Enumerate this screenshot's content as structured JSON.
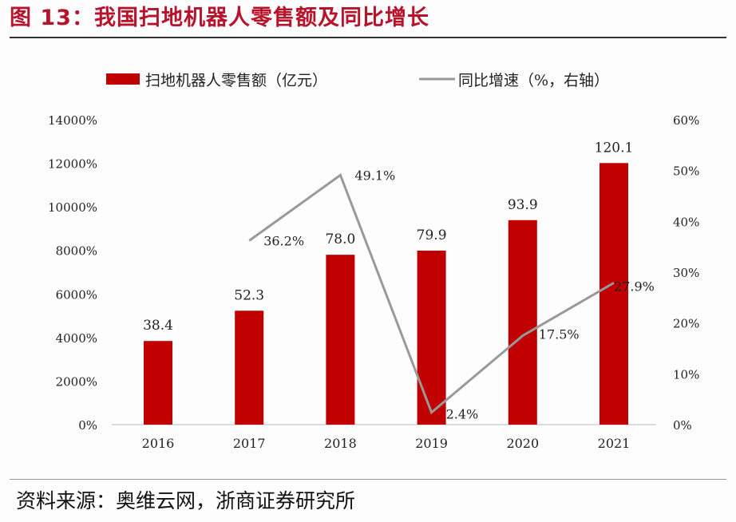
{
  "title": "图 13：我国扫地机器人零售额及同比增长",
  "source": "资料来源：奥维云网，浙商证券研究所",
  "chart_data": {
    "type": "bar+line",
    "categories": [
      "2016",
      "2017",
      "2018",
      "2019",
      "2020",
      "2021"
    ],
    "series": [
      {
        "name": "扫地机器人零售额（亿元）",
        "type": "bar",
        "axis": "left",
        "color": "#c00000",
        "values": [
          38.4,
          52.3,
          78.0,
          79.9,
          93.9,
          120.1
        ],
        "labels": [
          "38.4",
          "52.3",
          "78.0",
          "79.9",
          "93.9",
          "120.1"
        ]
      },
      {
        "name": "同比增速（%，右轴）",
        "type": "line",
        "axis": "right",
        "color": "#999999",
        "values": [
          null,
          36.2,
          49.1,
          2.4,
          17.5,
          27.9
        ],
        "labels": [
          "",
          "36.2%",
          "49.1%",
          "2.4%",
          "17.5%",
          "27.9%"
        ]
      }
    ],
    "left_axis": {
      "ylim": [
        0,
        140
      ],
      "ticks": [
        "0%",
        "2000%",
        "4000%",
        "6000%",
        "8000%",
        "10000%",
        "12000%",
        "14000%"
      ]
    },
    "right_axis": {
      "ylim": [
        0,
        60
      ],
      "ticks": [
        "0%",
        "10%",
        "20%",
        "30%",
        "40%",
        "50%",
        "60%"
      ]
    },
    "legend": "top",
    "grid": false
  }
}
